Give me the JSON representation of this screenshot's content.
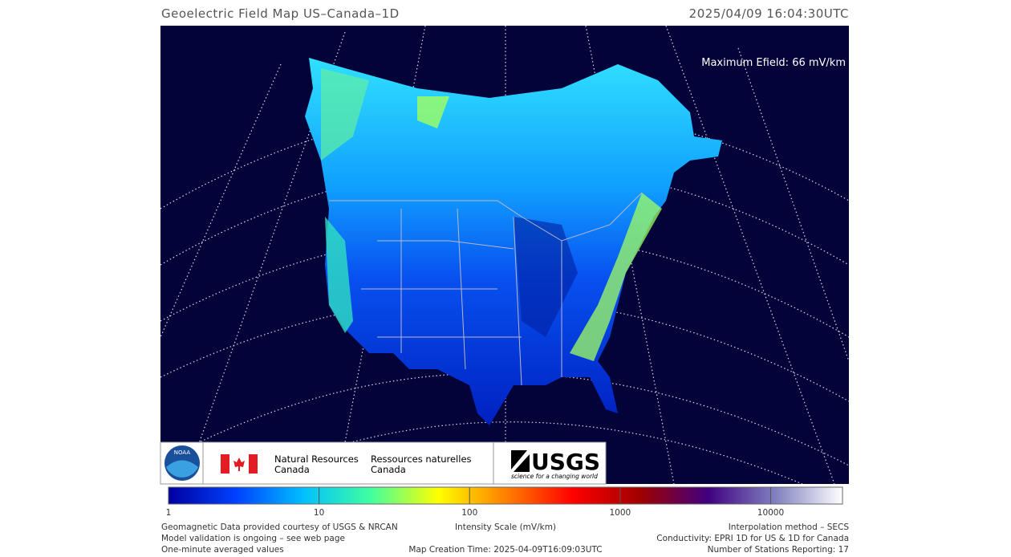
{
  "header": {
    "title": "Geoelectric Field Map US–Canada–1D",
    "timestamp": "2025/04/09 16:04:30UTC"
  },
  "map": {
    "max_efield": "Maximum Efield: 66 mV/km"
  },
  "logos": {
    "noaa": "NOAA",
    "nrcan_en": "Natural Resources\nCanada",
    "nrcan_fr": "Ressources naturelles\nCanada",
    "usgs": "USGS",
    "usgs_tagline": "science for a changing world"
  },
  "colorbar": {
    "lim": [
      1,
      30000
    ],
    "log": true,
    "ticks": [
      1,
      10,
      100,
      1000,
      10000
    ],
    "colors": [
      "#0000a0",
      "#0040ff",
      "#00c0ff",
      "#40ffa0",
      "#ffff00",
      "#ff8000",
      "#ff0000",
      "#a00000",
      "#400080",
      "#8080c0",
      "#ffffff"
    ],
    "label": "Intensity Scale (mV/km)"
  },
  "footer": {
    "left": [
      "Geomagnetic Data provided courtesy of USGS & NRCAN",
      "Model validation is ongoing – see web page",
      "One-minute averaged values"
    ],
    "center": [
      "Map Creation Time: 2025-04-09T16:09:03UTC"
    ],
    "right": [
      "Interpolation method – SECS",
      "Conductivity: EPRI 1D for US & 1D for Canada",
      "Number of Stations Reporting: 17"
    ]
  }
}
